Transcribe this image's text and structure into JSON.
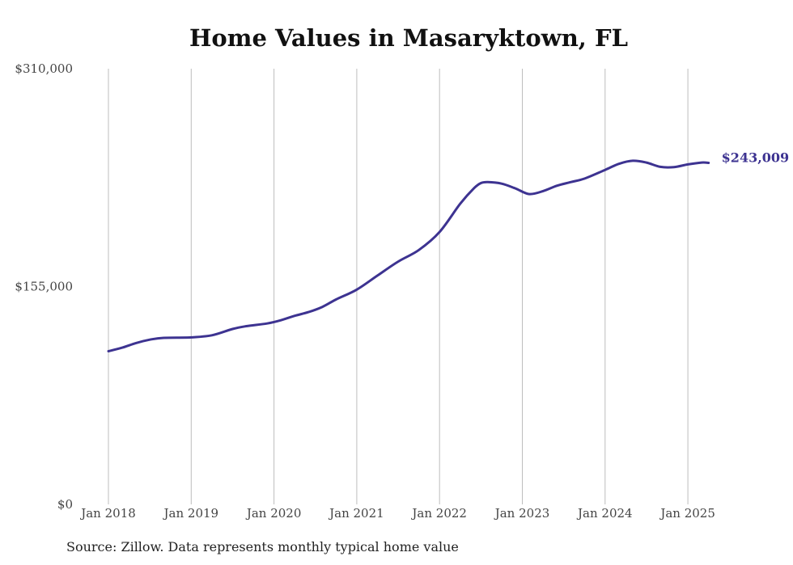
{
  "chart_data": {
    "type": "line",
    "title": "Home Values in Masaryktown, FL",
    "source": "Source: Zillow. Data represents monthly typical home value",
    "y_ticks": [
      {
        "value": 0,
        "label": "$0"
      },
      {
        "value": 155000,
        "label": "$155,000"
      },
      {
        "value": 310000,
        "label": "$310,000"
      }
    ],
    "ylim": [
      0,
      310000
    ],
    "x_ticks": [
      {
        "date": "2018-01",
        "label": "Jan 2018"
      },
      {
        "date": "2019-01",
        "label": "Jan 2019"
      },
      {
        "date": "2020-01",
        "label": "Jan 2020"
      },
      {
        "date": "2021-01",
        "label": "Jan 2021"
      },
      {
        "date": "2022-01",
        "label": "Jan 2022"
      },
      {
        "date": "2023-01",
        "label": "Jan 2023"
      },
      {
        "date": "2024-01",
        "label": "Jan 2024"
      },
      {
        "date": "2025-01",
        "label": "Jan 2025"
      }
    ],
    "xlim": [
      "2018-01",
      "2025-04"
    ],
    "grid": "vertical",
    "line_color": "#3d3391",
    "end_label": "$243,009",
    "series": [
      {
        "points": [
          [
            "2018-01",
            109000
          ],
          [
            "2018-03",
            111500
          ],
          [
            "2018-05",
            114800
          ],
          [
            "2018-07",
            117200
          ],
          [
            "2018-09",
            118500
          ],
          [
            "2019-01",
            118800
          ],
          [
            "2019-04",
            120300
          ],
          [
            "2019-07",
            124800
          ],
          [
            "2019-09",
            126800
          ],
          [
            "2019-12",
            128700
          ],
          [
            "2020-02",
            131000
          ],
          [
            "2020-04",
            134200
          ],
          [
            "2020-06",
            136800
          ],
          [
            "2020-08",
            140500
          ],
          [
            "2020-10",
            145800
          ],
          [
            "2021-01",
            152800
          ],
          [
            "2021-04",
            162800
          ],
          [
            "2021-07",
            172800
          ],
          [
            "2021-10",
            181000
          ],
          [
            "2022-01",
            193800
          ],
          [
            "2022-04",
            214000
          ],
          [
            "2022-06",
            225000
          ],
          [
            "2022-07",
            228600
          ],
          [
            "2022-08",
            229300
          ],
          [
            "2022-10",
            228200
          ],
          [
            "2022-12",
            224800
          ],
          [
            "2023-02",
            220800
          ],
          [
            "2023-04",
            222900
          ],
          [
            "2023-06",
            226700
          ],
          [
            "2023-08",
            229300
          ],
          [
            "2023-10",
            231800
          ],
          [
            "2024-01",
            238000
          ],
          [
            "2024-03",
            242300
          ],
          [
            "2024-05",
            244500
          ],
          [
            "2024-07",
            243200
          ],
          [
            "2024-09",
            240200
          ],
          [
            "2024-11",
            240000
          ],
          [
            "2025-01",
            241900
          ],
          [
            "2025-03",
            243200
          ],
          [
            "2025-04",
            243009
          ]
        ]
      }
    ]
  }
}
